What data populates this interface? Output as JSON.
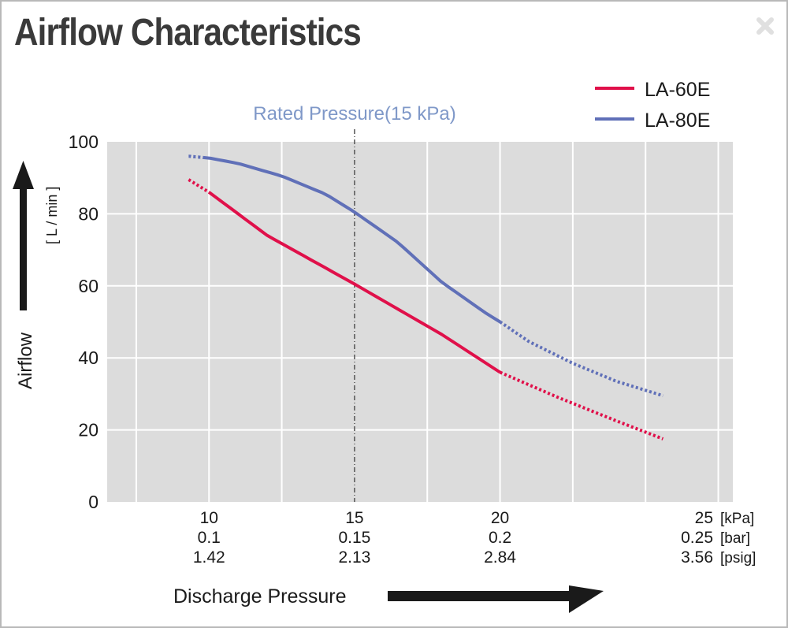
{
  "title": "Airflow Characteristics",
  "close_icon": "close-icon",
  "colors": {
    "LA-60E": "#e0104a",
    "LA-80E": "#6070b8",
    "rated": "#7f98c8",
    "plot_bg": "#dcdcdc",
    "grid": "#ffffff"
  },
  "chart_data": {
    "type": "line",
    "title": "Airflow Characteristics",
    "xlabel": "Discharge Pressure",
    "ylabel": "Airflow",
    "yunit": "[ L / min ]",
    "xlim": [
      6.5,
      28
    ],
    "ylim": [
      0,
      100
    ],
    "yticks": [
      0,
      20,
      40,
      60,
      80,
      100
    ],
    "grid": true,
    "legend": "top-right",
    "x_ticks": [
      10,
      15,
      20,
      25
    ],
    "x_tick_rows": [
      {
        "unit": "[kPa]",
        "labels": [
          "10",
          "15",
          "20",
          "25"
        ]
      },
      {
        "unit": "[bar]",
        "labels": [
          "0.1",
          "0.15",
          "0.2",
          "0.25"
        ]
      },
      {
        "unit": "[psig]",
        "labels": [
          "1.42",
          "2.13",
          "2.84",
          "3.56"
        ]
      }
    ],
    "rated_pressure": {
      "x": 15,
      "label": "Rated Pressure(15 kPa)"
    },
    "series": [
      {
        "name": "LA-60E",
        "x": [
          9.3,
          10,
          12,
          15,
          18,
          20,
          22,
          24,
          25.6
        ],
        "y": [
          89.5,
          86,
          74,
          60.5,
          46.5,
          36,
          29,
          22.5,
          17.5
        ],
        "solid_range": [
          10,
          20
        ]
      },
      {
        "name": "LA-80E",
        "x": [
          9.3,
          10,
          11,
          12.5,
          14,
          15,
          16.5,
          18,
          19.5,
          20,
          21,
          22.5,
          24,
          25.6
        ],
        "y": [
          96,
          95.5,
          94,
          90.5,
          85.5,
          80.5,
          72,
          61,
          52.5,
          50,
          44.5,
          38.5,
          33.5,
          29.5
        ],
        "solid_range": [
          9.8,
          20
        ]
      }
    ]
  }
}
